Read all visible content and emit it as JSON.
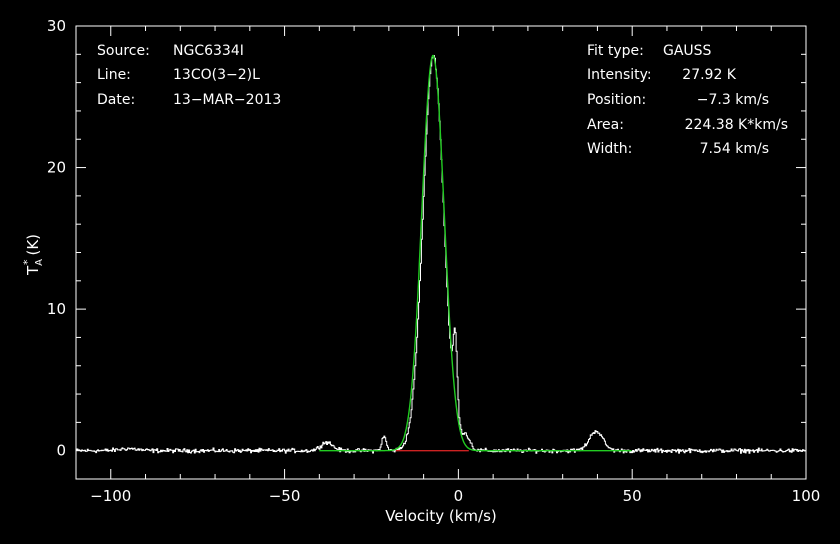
{
  "chart_data": {
    "type": "line",
    "xlabel": "Velocity (km/s)",
    "ylabel_main": "T",
    "ylabel_sub": "A",
    "ylabel_sup": "*",
    "ylabel_unit": "(K)",
    "xlim": [
      -110,
      100
    ],
    "ylim": [
      -2,
      30
    ],
    "x_ticks": [
      -100,
      -50,
      0,
      50,
      100
    ],
    "x_tick_labels": [
      "−100",
      "−50",
      "0",
      "50",
      "100"
    ],
    "y_ticks": [
      0,
      10,
      20,
      30
    ],
    "y_tick_labels": [
      "0",
      "10",
      "20",
      "30"
    ],
    "x_minor_step": 10,
    "y_minor_step": 2,
    "grid": false,
    "colors": {
      "background": "#000000",
      "axes": "#ffffff",
      "spectrum": "#ffffff",
      "fit": "#22cc22",
      "baseline": "#cc2222"
    },
    "series": [
      {
        "role": "spectrum",
        "components": [
          {
            "center": -7.3,
            "peak": 27.92,
            "fwhm": 7.0
          },
          {
            "center": -1.0,
            "peak": 5.5,
            "fwhm": 1.4
          },
          {
            "center": 2.0,
            "peak": 1.0,
            "fwhm": 3.0
          },
          {
            "center": -21.5,
            "peak": 1.0,
            "fwhm": 1.5
          },
          {
            "center": -38.0,
            "peak": 0.6,
            "fwhm": 4.0
          },
          {
            "center": 39.5,
            "peak": 1.4,
            "fwhm": 4.5
          },
          {
            "center": -95.0,
            "peak": 0.15,
            "fwhm": 6.0
          }
        ],
        "noise_rms": 0.12
      },
      {
        "role": "fit",
        "center": -7.3,
        "peak": 27.92,
        "fwhm": 7.54,
        "x_range": [
          -40,
          50
        ]
      },
      {
        "role": "baseline",
        "value": 0,
        "x_range": [
          -18,
          3
        ]
      }
    ]
  },
  "info_left": [
    {
      "label": "Source:",
      "value": "NGC6334I"
    },
    {
      "label": "Line:",
      "value": "13CO(3−2)L"
    },
    {
      "label": "Date:",
      "value": "13−MAR−2013"
    }
  ],
  "info_right": [
    {
      "label": "Fit type:",
      "value": "GAUSS"
    },
    {
      "label": "Intensity:",
      "value": "27.92 K"
    },
    {
      "label": "Position:",
      "value": "−7.3 km/s"
    },
    {
      "label": "Area:",
      "value": "224.38 K*km/s"
    },
    {
      "label": "Width:",
      "value": "7.54 km/s"
    }
  ]
}
